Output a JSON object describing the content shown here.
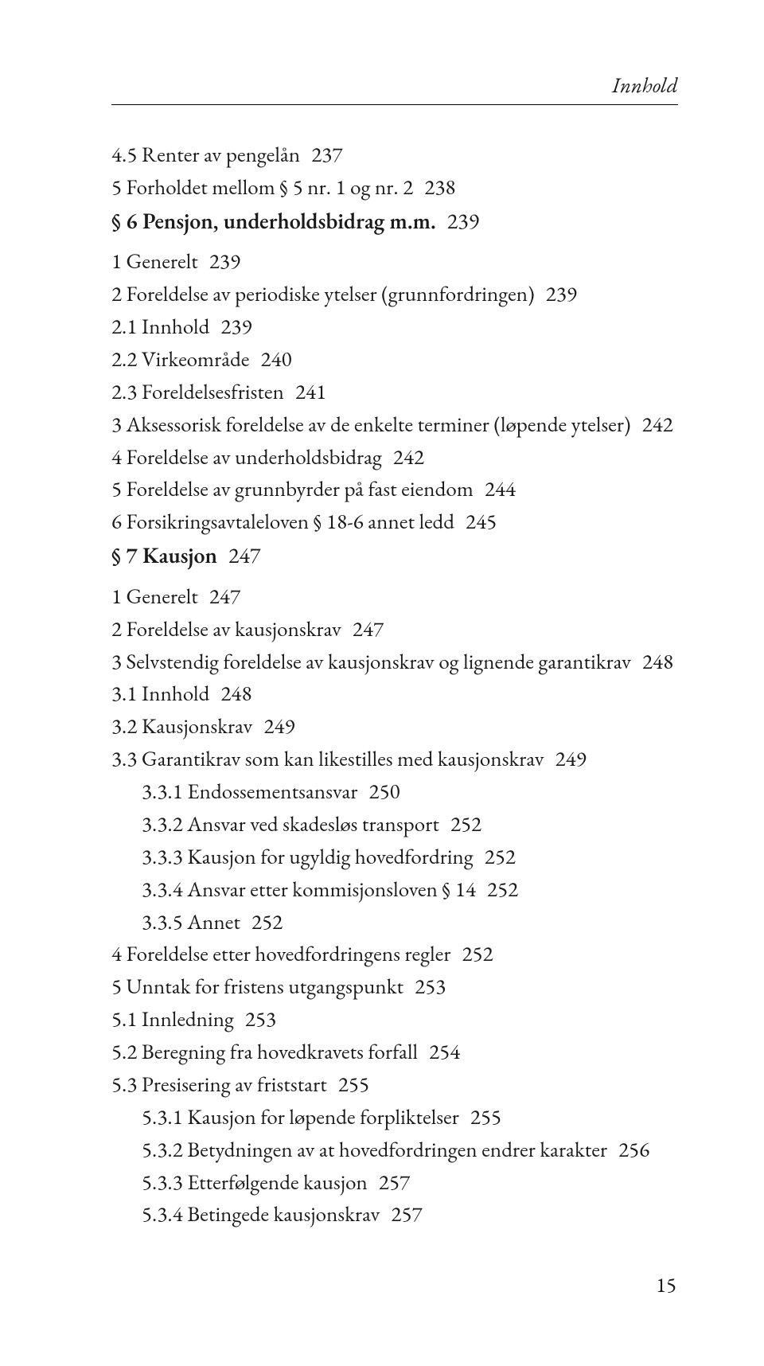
{
  "typography": {
    "font_family": "Adobe Garamond Pro, Garamond, Georgia, serif",
    "body_fontsize_pt": 13,
    "heading_fontsize_pt": 13.5,
    "running_head_fontsize_pt": 13,
    "line_height": 1.44,
    "text_color": "#1a1a1a",
    "background_color": "#ffffff",
    "rule_color": "#000000"
  },
  "running_head": "Innhold",
  "page_number": "15",
  "entries": [
    {
      "level": 0,
      "bold": false,
      "label": "4.5 Renter av pengelån",
      "page": "237"
    },
    {
      "level": 0,
      "bold": false,
      "label": "5 Forholdet mellom § 5 nr. 1 og nr. 2",
      "page": "238"
    },
    {
      "level": 0,
      "bold": true,
      "label": "§ 6 Pensjon, underholdsbidrag m.m.",
      "page": "239"
    },
    {
      "level": 0,
      "bold": false,
      "label": "1 Generelt",
      "page": "239"
    },
    {
      "level": 0,
      "bold": false,
      "label": "2 Foreldelse av periodiske ytelser (grunnfordringen)",
      "page": "239"
    },
    {
      "level": 0,
      "bold": false,
      "label": "2.1 Innhold",
      "page": "239"
    },
    {
      "level": 0,
      "bold": false,
      "label": "2.2 Virkeområde",
      "page": "240"
    },
    {
      "level": 0,
      "bold": false,
      "label": "2.3 Foreldelsesfristen",
      "page": "241"
    },
    {
      "level": 0,
      "bold": false,
      "label": "3 Aksessorisk foreldelse av de enkelte terminer (løpende ytelser)",
      "page": "242"
    },
    {
      "level": 0,
      "bold": false,
      "label": "4 Foreldelse av underholdsbidrag",
      "page": "242"
    },
    {
      "level": 0,
      "bold": false,
      "label": "5 Foreldelse av grunnbyrder på fast eiendom",
      "page": "244"
    },
    {
      "level": 0,
      "bold": false,
      "label": "6 Forsikringsavtaleloven § 18-6 annet ledd",
      "page": "245"
    },
    {
      "level": 0,
      "bold": true,
      "label": "§ 7 Kausjon",
      "page": "247"
    },
    {
      "level": 0,
      "bold": false,
      "label": "1 Generelt",
      "page": "247"
    },
    {
      "level": 0,
      "bold": false,
      "label": "2 Foreldelse av kausjonskrav",
      "page": "247"
    },
    {
      "level": 0,
      "bold": false,
      "label": "3 Selvstendig foreldelse av kausjonskrav og lignende garantikrav",
      "page": "248"
    },
    {
      "level": 0,
      "bold": false,
      "label": "3.1 Innhold",
      "page": "248"
    },
    {
      "level": 0,
      "bold": false,
      "label": "3.2 Kausjonskrav",
      "page": "249"
    },
    {
      "level": 0,
      "bold": false,
      "label": "3.3 Garantikrav som kan likestilles med kausjonskrav",
      "page": "249"
    },
    {
      "level": 1,
      "bold": false,
      "label": "3.3.1 Endossementsansvar",
      "page": "250"
    },
    {
      "level": 1,
      "bold": false,
      "label": "3.3.2 Ansvar ved skadesløs transport",
      "page": "252"
    },
    {
      "level": 1,
      "bold": false,
      "label": "3.3.3 Kausjon for ugyldig hovedfordring",
      "page": "252"
    },
    {
      "level": 1,
      "bold": false,
      "label": "3.3.4 Ansvar etter kommisjonsloven § 14",
      "page": "252"
    },
    {
      "level": 1,
      "bold": false,
      "label": "3.3.5 Annet",
      "page": "252"
    },
    {
      "level": 0,
      "bold": false,
      "label": "4 Foreldelse etter hovedfordringens regler",
      "page": "252"
    },
    {
      "level": 0,
      "bold": false,
      "label": "5 Unntak for fristens utgangspunkt",
      "page": "253"
    },
    {
      "level": 0,
      "bold": false,
      "label": "5.1 Innledning",
      "page": "253"
    },
    {
      "level": 0,
      "bold": false,
      "label": "5.2 Beregning fra hovedkravets forfall",
      "page": "254"
    },
    {
      "level": 0,
      "bold": false,
      "label": "5.3 Presisering av friststart",
      "page": "255"
    },
    {
      "level": 1,
      "bold": false,
      "label": "5.3.1 Kausjon for løpende forpliktelser",
      "page": "255"
    },
    {
      "level": 1,
      "bold": false,
      "label": "5.3.2 Betydningen av at hovedfordringen endrer karakter",
      "page": "256"
    },
    {
      "level": 1,
      "bold": false,
      "label": "5.3.3 Etterfølgende kausjon",
      "page": "257"
    },
    {
      "level": 1,
      "bold": false,
      "label": "5.3.4 Betingede kausjonskrav",
      "page": "257"
    }
  ]
}
